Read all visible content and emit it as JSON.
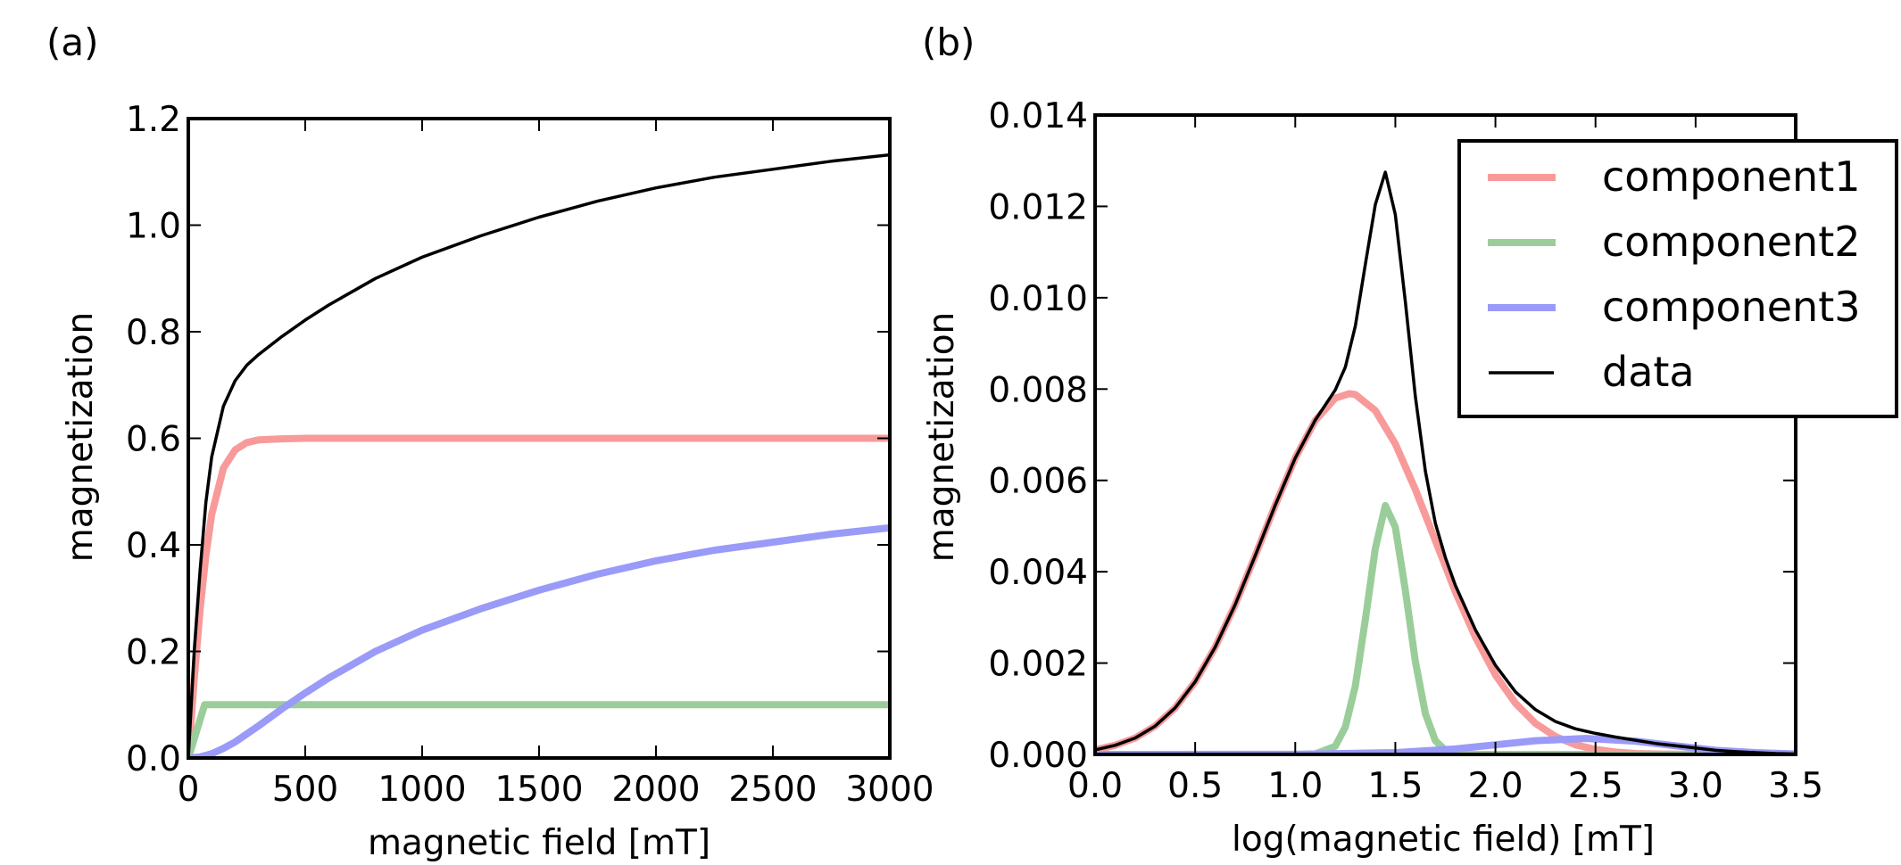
{
  "chart_data": [
    {
      "type": "line",
      "panel_label": "(a)",
      "title": "",
      "xlabel": "magnetic field [mT]",
      "ylabel": "magnetization",
      "xlim": [
        0,
        3000
      ],
      "ylim": [
        0,
        1.2
      ],
      "xticks": [
        0,
        500,
        1000,
        1500,
        2000,
        2500,
        3000
      ],
      "xtick_labels": [
        "0",
        "500",
        "1000",
        "1500",
        "2000",
        "2500",
        "3000"
      ],
      "yticks": [
        0.0,
        0.2,
        0.4,
        0.6,
        0.8,
        1.0,
        1.2
      ],
      "ytick_labels": [
        "0.0",
        "0.2",
        "0.4",
        "0.6",
        "0.8",
        "1.0",
        "1.2"
      ],
      "grid": false,
      "series": [
        {
          "name": "component1",
          "color": "#f89a9a",
          "x": [
            0,
            25,
            50,
            75,
            100,
            150,
            200,
            250,
            300,
            400,
            500,
            700,
            1000,
            1500,
            2000,
            2500,
            3000
          ],
          "y": [
            0,
            0.147,
            0.277,
            0.381,
            0.457,
            0.544,
            0.578,
            0.592,
            0.597,
            0.599,
            0.6,
            0.6,
            0.6,
            0.6,
            0.6,
            0.6,
            0.6
          ]
        },
        {
          "name": "component2",
          "color": "#9acd9a",
          "x": [
            0,
            35,
            70,
            500,
            1000,
            1500,
            2000,
            2500,
            3000
          ],
          "y": [
            0,
            0.05,
            0.1,
            0.1,
            0.1,
            0.1,
            0.1,
            0.1,
            0.1
          ]
        },
        {
          "name": "component3",
          "color": "#9a9af8",
          "x": [
            0,
            50,
            100,
            150,
            200,
            300,
            400,
            500,
            600,
            800,
            1000,
            1250,
            1500,
            1750,
            2000,
            2250,
            2500,
            2750,
            3000
          ],
          "y": [
            0,
            0.002,
            0.008,
            0.018,
            0.03,
            0.06,
            0.092,
            0.122,
            0.15,
            0.2,
            0.24,
            0.28,
            0.315,
            0.345,
            0.37,
            0.39,
            0.405,
            0.42,
            0.432
          ]
        },
        {
          "name": "data",
          "color": "#000000",
          "x": [
            0,
            25,
            50,
            75,
            100,
            150,
            200,
            250,
            300,
            400,
            500,
            600,
            800,
            1000,
            1250,
            1500,
            1750,
            2000,
            2250,
            2500,
            2750,
            3000
          ],
          "y": [
            0,
            0.2,
            0.35,
            0.48,
            0.565,
            0.66,
            0.708,
            0.737,
            0.757,
            0.791,
            0.822,
            0.85,
            0.9,
            0.94,
            0.98,
            1.015,
            1.045,
            1.07,
            1.09,
            1.105,
            1.12,
            1.132
          ]
        }
      ]
    },
    {
      "type": "line",
      "panel_label": "(b)",
      "title": "",
      "xlabel": "log(magnetic field) [mT]",
      "ylabel": "magnetization",
      "xlim": [
        0,
        3.5
      ],
      "ylim": [
        0,
        0.014
      ],
      "xticks": [
        0.0,
        0.5,
        1.0,
        1.5,
        2.0,
        2.5,
        3.0,
        3.5
      ],
      "xtick_labels": [
        "0.0",
        "0.5",
        "1.0",
        "1.5",
        "2.0",
        "2.5",
        "3.0",
        "3.5"
      ],
      "yticks": [
        0.0,
        0.002,
        0.004,
        0.006,
        0.008,
        0.01,
        0.012,
        0.014
      ],
      "ytick_labels": [
        "0.000",
        "0.002",
        "0.004",
        "0.006",
        "0.008",
        "0.010",
        "0.012",
        "0.014"
      ],
      "grid": false,
      "legend": {
        "placement": "top-right",
        "entries": [
          "component1",
          "component2",
          "component3",
          "data"
        ]
      },
      "series": [
        {
          "name": "component1",
          "color": "#f89a9a",
          "x": [
            0,
            0.1,
            0.2,
            0.3,
            0.4,
            0.5,
            0.6,
            0.7,
            0.8,
            0.9,
            1.0,
            1.1,
            1.2,
            1.27,
            1.3,
            1.4,
            1.5,
            1.6,
            1.7,
            1.8,
            1.9,
            2.0,
            2.1,
            2.2,
            2.3,
            2.4,
            2.5,
            2.6,
            2.7,
            2.8,
            3.0,
            3.5
          ],
          "y": [
            0.0001,
            0.0002,
            0.00036,
            0.00062,
            0.00102,
            0.00159,
            0.00235,
            0.00328,
            0.00435,
            0.00546,
            0.00649,
            0.00731,
            0.0078,
            0.0079,
            0.00788,
            0.00753,
            0.0068,
            0.0058,
            0.00468,
            0.00356,
            0.00257,
            0.00174,
            0.00112,
            0.00068,
            0.00039,
            0.00021,
            0.00011,
            5e-05,
            2e-05,
            1e-05,
            0,
            0
          ]
        },
        {
          "name": "component2",
          "color": "#9acd9a",
          "x": [
            0,
            1.0,
            1.1,
            1.2,
            1.25,
            1.3,
            1.35,
            1.4,
            1.45,
            1.5,
            1.55,
            1.6,
            1.65,
            1.7,
            1.75,
            1.8,
            1.9,
            3.5
          ],
          "y": [
            0,
            0,
            1e-05,
            0.00018,
            0.0006,
            0.0015,
            0.00295,
            0.00451,
            0.00545,
            0.00498,
            0.0036,
            0.00203,
            0.00089,
            0.0003,
            9e-05,
            2e-05,
            0,
            0
          ]
        },
        {
          "name": "component3",
          "color": "#9a9af8",
          "x": [
            0,
            1.0,
            1.5,
            1.8,
            2.0,
            2.2,
            2.45,
            2.7,
            2.9,
            3.1,
            3.3,
            3.5
          ],
          "y": [
            0,
            2e-06,
            4e-05,
            0.00012,
            0.00021,
            0.0003,
            0.00035,
            0.00029,
            0.00019,
            9e-05,
            4e-05,
            1e-05
          ]
        },
        {
          "name": "data",
          "color": "#000000",
          "x": [
            0,
            0.1,
            0.2,
            0.3,
            0.4,
            0.5,
            0.6,
            0.7,
            0.8,
            0.9,
            1.0,
            1.1,
            1.2,
            1.25,
            1.3,
            1.35,
            1.4,
            1.45,
            1.5,
            1.55,
            1.6,
            1.65,
            1.7,
            1.75,
            1.8,
            1.9,
            2.0,
            2.1,
            2.2,
            2.3,
            2.4,
            2.5,
            2.6,
            2.7,
            2.8,
            2.9,
            3.0,
            3.1,
            3.2,
            3.3,
            3.4,
            3.5
          ],
          "y": [
            0.0001,
            0.0002,
            0.00036,
            0.00062,
            0.00102,
            0.00159,
            0.00235,
            0.00328,
            0.00435,
            0.00546,
            0.00649,
            0.00732,
            0.00798,
            0.00848,
            0.00938,
            0.01073,
            0.01204,
            0.01275,
            0.01182,
            0.00992,
            0.00783,
            0.0062,
            0.00506,
            0.00431,
            0.0037,
            0.00273,
            0.00195,
            0.00137,
            0.00098,
            0.00072,
            0.00056,
            0.00046,
            0.00038,
            0.00031,
            0.00024,
            0.00019,
            0.00014,
            9e-05,
            6e-05,
            4e-05,
            2e-05,
            1e-05
          ]
        }
      ]
    }
  ]
}
